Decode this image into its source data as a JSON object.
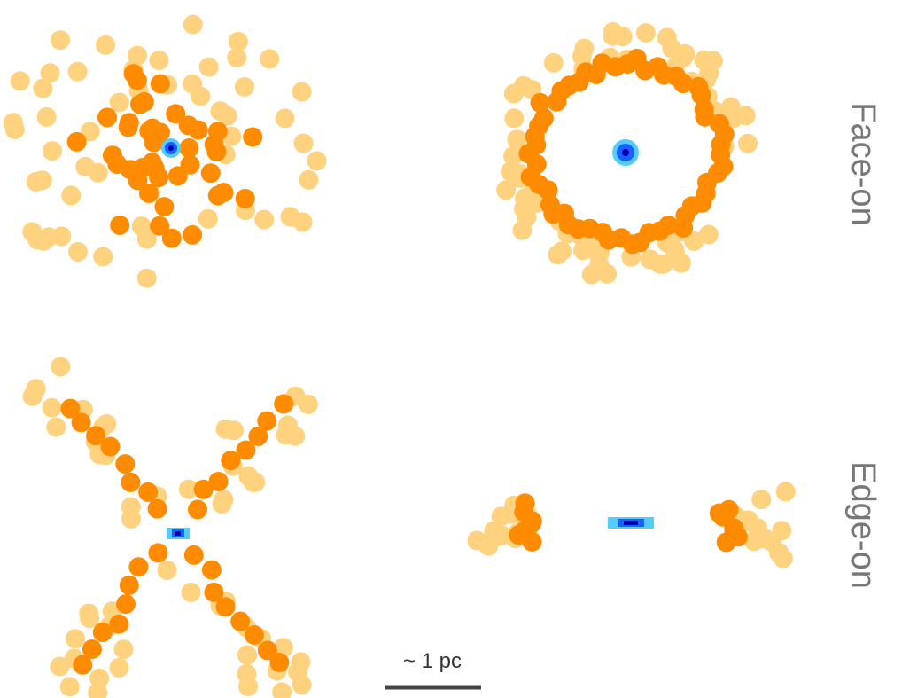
{
  "labels": {
    "face_on": "Face-on",
    "edge_on": "Edge-on"
  },
  "scale_bar": "~ 1 pc"
}
